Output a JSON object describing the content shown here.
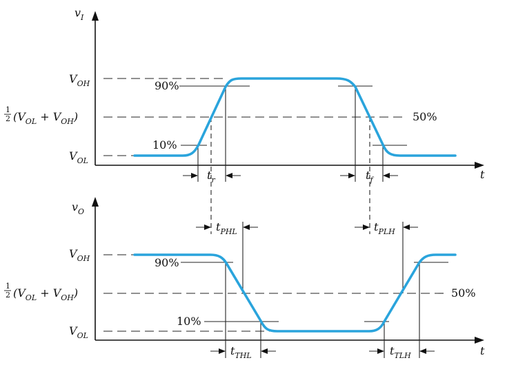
{
  "input_plot": {
    "y_axis_label": "v",
    "y_axis_sub": "I",
    "x_axis_label": "t",
    "level_high": "V",
    "level_high_sub": "OH",
    "level_low": "V",
    "level_low_sub": "OL",
    "level_mid_frac": "1",
    "level_mid_den": "2",
    "level_mid_text": "(V",
    "level_mid_sub1": "OL",
    "level_mid_plus": " + V",
    "level_mid_sub2": "OH",
    "level_mid_close": ")",
    "pct_90": "90%",
    "pct_50": "50%",
    "pct_10": "10%",
    "rise_label": "t",
    "rise_sub": "r",
    "fall_label": "t",
    "fall_sub": "f"
  },
  "output_plot": {
    "y_axis_label": "v",
    "y_axis_sub": "O",
    "x_axis_label": "t",
    "level_high": "V",
    "level_high_sub": "OH",
    "level_low": "V",
    "level_low_sub": "OL",
    "level_mid_frac": "1",
    "level_mid_den": "2",
    "level_mid_text": "(V",
    "level_mid_sub1": "OL",
    "level_mid_plus": " + V",
    "level_mid_sub2": "OH",
    "level_mid_close": ")",
    "pct_90": "90%",
    "pct_50": "50%",
    "pct_10": "10%",
    "tphl_label": "t",
    "tphl_sub": "PHL",
    "tplh_label": "t",
    "tplh_sub": "PLH",
    "tthl_label": "t",
    "tthl_sub": "THL",
    "ttlh_label": "t",
    "ttlh_sub": "TLH"
  },
  "colors": {
    "waveform": "#2aa4dc",
    "lines": "#222222"
  }
}
